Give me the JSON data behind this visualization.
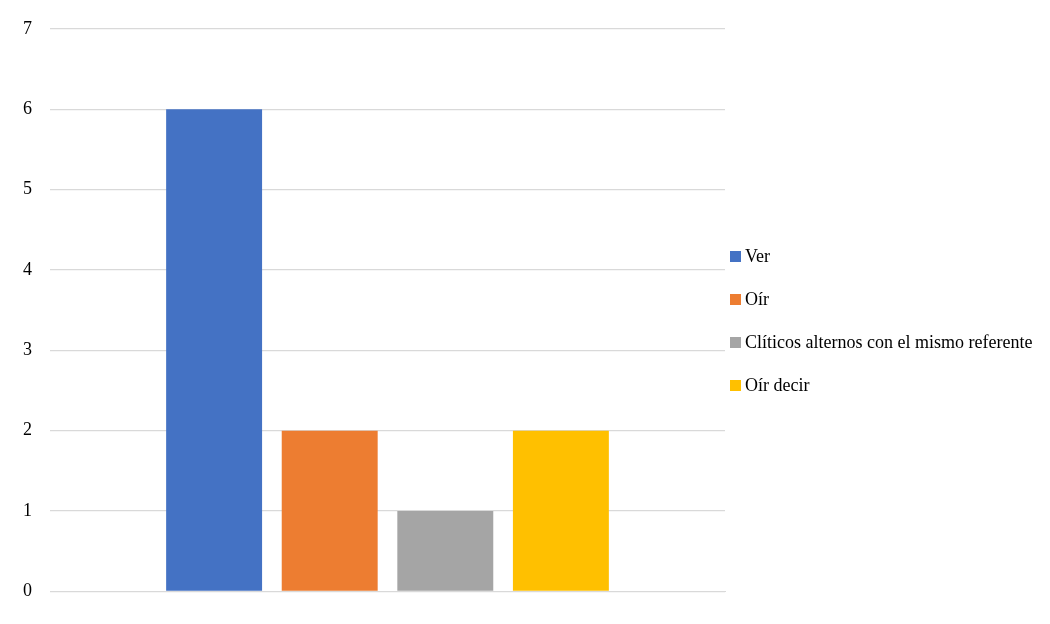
{
  "chart_data": {
    "type": "bar",
    "categories": [
      null
    ],
    "series": [
      {
        "name": "Ver",
        "color": "#4472c4",
        "values": [
          6
        ]
      },
      {
        "name": "Oír",
        "color": "#ed7d31",
        "values": [
          2
        ]
      },
      {
        "name": "Clíticos alternos con el mismo referente",
        "color": "#a5a5a5",
        "values": [
          1
        ]
      },
      {
        "name": "Oír decir",
        "color": "#ffc000",
        "values": [
          2
        ]
      }
    ],
    "ylim": [
      0,
      7
    ],
    "yticks": [
      0,
      1,
      2,
      3,
      4,
      5,
      6,
      7
    ],
    "grid": "y",
    "legend": "right"
  }
}
